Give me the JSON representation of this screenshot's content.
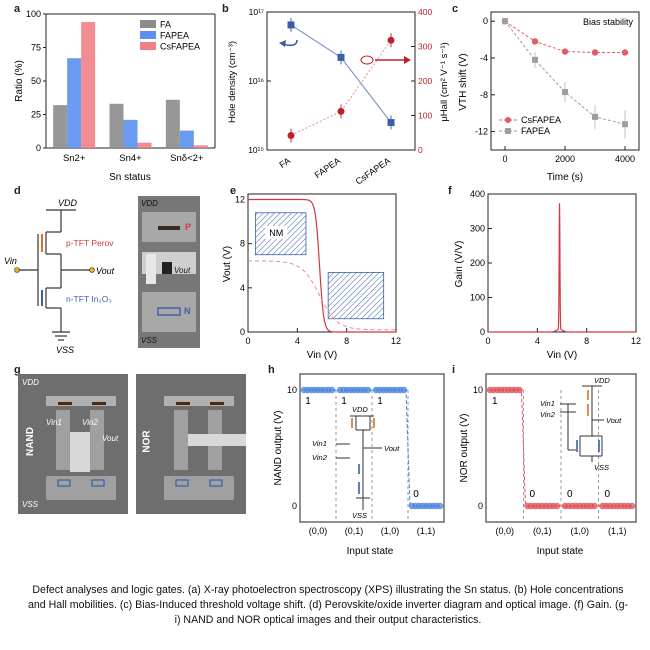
{
  "panels": {
    "a": {
      "label": "a"
    },
    "b": {
      "label": "b"
    },
    "c": {
      "label": "c"
    },
    "d": {
      "label": "d"
    },
    "e": {
      "label": "e"
    },
    "f": {
      "label": "f"
    },
    "g": {
      "label": "g"
    },
    "h": {
      "label": "h"
    },
    "i": {
      "label": "i"
    }
  },
  "chart_data": [
    {
      "panel": "a",
      "type": "bar",
      "ylabel": "Ratio (%)",
      "xlabel": "Sn status",
      "categories": [
        "Sn2+",
        "Sn4+",
        "Snδ<2+"
      ],
      "ylim": [
        0,
        100
      ],
      "yticks": [
        "0",
        "25",
        "50",
        "75",
        "100"
      ],
      "legend_position": "top-right",
      "series": [
        {
          "name": "FA",
          "color": "#8c8c8c",
          "values": [
            32,
            33,
            36
          ]
        },
        {
          "name": "FAPEA",
          "color": "#5b8ff0",
          "values": [
            67,
            21,
            13
          ]
        },
        {
          "name": "CsFAPEA",
          "color": "#f07f87",
          "values": [
            94,
            4,
            2
          ]
        }
      ]
    },
    {
      "panel": "b",
      "type": "line",
      "ylabel_left": "Hole density (cm⁻³)",
      "ylabel_right": "μHall (cm² V⁻¹ s⁻¹)",
      "categories": [
        "FA",
        "FAPEA",
        "CsFAPEA"
      ],
      "yticks_left": [
        "10¹⁵",
        "10¹⁶",
        "10¹⁷"
      ],
      "yticks_right": [
        "0",
        "100",
        "200",
        "300",
        "400"
      ],
      "ylim_left_log10": [
        15,
        17
      ],
      "ylim_right": [
        0,
        400
      ],
      "series": [
        {
          "name": "Hole density",
          "axis": "left",
          "scale": "log",
          "color": "#3a5fa8",
          "values": [
            6.5e+16,
            2.2e+16,
            2500000000000000.0
          ]
        },
        {
          "name": "Hall mobility",
          "axis": "right",
          "color": "#c0202a",
          "values": [
            42,
            112,
            318
          ]
        }
      ]
    },
    {
      "panel": "c",
      "type": "line",
      "title": "Bias stability",
      "ylabel": "VTH shift (V)",
      "xlabel": "Time (s)",
      "x": [
        0,
        1000,
        2000,
        3000,
        4000
      ],
      "xticks": [
        "0",
        "2000",
        "4000"
      ],
      "yticks": [
        "0",
        "-4",
        "-8",
        "-12"
      ],
      "ylim": [
        -14,
        1
      ],
      "legend_position": "bottom-left",
      "series": [
        {
          "name": "CsFAPEA",
          "color": "#e25c64",
          "values": [
            0,
            -2.2,
            -3.3,
            -3.4,
            -3.4
          ]
        },
        {
          "name": "FAPEA",
          "color": "#9e9e9e",
          "values": [
            0,
            -4.2,
            -7.7,
            -10.4,
            -11.2
          ]
        }
      ]
    },
    {
      "panel": "e",
      "type": "line",
      "ylabel": "Vout (V)",
      "xlabel": "Vin (V)",
      "xticks": [
        "0",
        "4",
        "8",
        "12"
      ],
      "yticks": [
        "0",
        "4",
        "8",
        "12"
      ],
      "xlim": [
        0,
        12
      ],
      "ylim": [
        0,
        12.5
      ],
      "annotations": [
        "NM"
      ]
    },
    {
      "panel": "f",
      "type": "line",
      "ylabel": "Gain (V/V)",
      "xlabel": "Vin (V)",
      "xticks": [
        "0",
        "4",
        "8",
        "12"
      ],
      "yticks": [
        "0",
        "100",
        "200",
        "300",
        "400"
      ],
      "xlim": [
        0,
        12
      ],
      "ylim": [
        0,
        400
      ],
      "peak": {
        "x": 5.8,
        "y": 365
      }
    },
    {
      "panel": "h",
      "type": "line",
      "ylabel": "NAND output (V)",
      "xlabel": "Input state",
      "categories": [
        "(0,0)",
        "(0,1)",
        "(1,0)",
        "(1,1)"
      ],
      "logic_outputs": [
        "1",
        "1",
        "1",
        "0"
      ],
      "yticks": [
        "0",
        "10"
      ],
      "values_V": [
        10,
        10,
        10,
        0
      ]
    },
    {
      "panel": "i",
      "type": "line",
      "ylabel": "NOR output (V)",
      "xlabel": "Input state",
      "categories": [
        "(0,0)",
        "(0,1)",
        "(1,0)",
        "(1,1)"
      ],
      "logic_outputs": [
        "1",
        "0",
        "0",
        "0"
      ],
      "yticks": [
        "0",
        "10"
      ],
      "values_V": [
        10,
        0,
        0,
        0
      ]
    }
  ],
  "panel_d": {
    "vdd": "VDD",
    "vss": "VSS",
    "vin": "Vin",
    "vout": "Vout",
    "ptft": "p-TFT Perov",
    "ntft": "n-TFT In₂O₃",
    "photo_vdd": "VDD",
    "photo_vss": "VSS",
    "photo_vout": "Vout",
    "photo_p": "P",
    "photo_n": "N"
  },
  "panel_g": {
    "nand": "NAND",
    "nor": "NOR",
    "vdd": "VDD",
    "vss": "VSS",
    "vin1": "Vin1",
    "vin2": "Vin2",
    "vout": "Vout"
  },
  "caption": "Defect analyses and logic gates. (a) X-ray photoelectron spectroscopy (XPS) illustrating the Sn status. (b) Hole concentrations and Hall mobilities. (c) Bias-Induced threshold voltage shift. (d) Perovskite/oxide inverter diagram and optical image. (f) Gain. (g-i) NAND and NOR optical images and their output characteristics.",
  "colors": {
    "fa": "#8c8c8c",
    "fapea": "#5b8ff0",
    "csfapea": "#f07f87",
    "red": "#d0383f",
    "blue": "#3a5fa8"
  }
}
